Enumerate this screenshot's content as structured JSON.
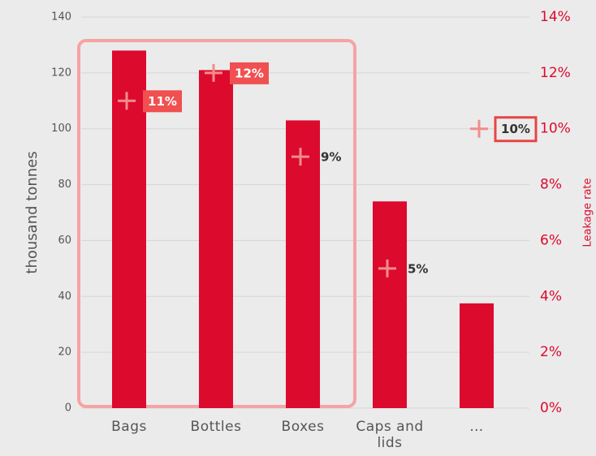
{
  "chart_data": {
    "type": "bar",
    "categories": [
      "Bags",
      "Bottles",
      "Boxes",
      "Caps and lids",
      "…"
    ],
    "series": [
      {
        "name": "thousand tonnes",
        "color": "#dc0a2d",
        "values": [
          128,
          121,
          103,
          74,
          37.5
        ]
      },
      {
        "name": "Leakage rate",
        "color": "#f28c8c",
        "axis": "y2",
        "values": [
          11,
          12,
          9,
          5,
          null
        ],
        "value_labels": [
          "11%",
          "12%",
          "9%",
          "5%",
          null
        ]
      }
    ],
    "reference_marker": {
      "value": 10,
      "label": "10%"
    },
    "y_label": "thousand tonnes",
    "y2_label": "Leakage rate",
    "ylim": [
      0,
      140
    ],
    "yticks": [
      0,
      20,
      40,
      60,
      80,
      100,
      120,
      140
    ],
    "y2lim": [
      0,
      14
    ],
    "y2ticks": [
      {
        "value": 0,
        "label": "0%"
      },
      {
        "value": 2,
        "label": "2%"
      },
      {
        "value": 4,
        "label": "4%"
      },
      {
        "value": 6,
        "label": "6%"
      },
      {
        "value": 8,
        "label": "8%"
      },
      {
        "value": 10,
        "label": "10%"
      },
      {
        "value": 12,
        "label": "12%"
      },
      {
        "value": 14,
        "label": "14%"
      }
    ],
    "grid": true
  }
}
